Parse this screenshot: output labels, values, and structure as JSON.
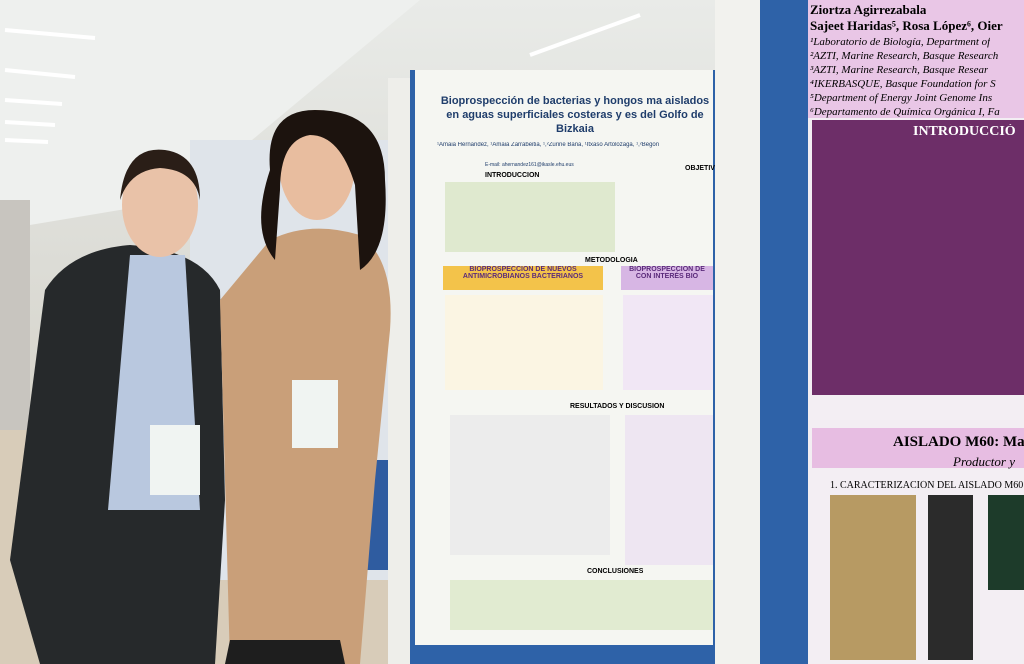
{
  "left_poster": {
    "title": "Bioprospección de bacterias y hongos ma aislados en aguas superficiales costeras y es del Golfo de Bizkaia",
    "authors": "¹Amaia Hernandez, ¹Amaia Zarrabeitia, ¹,²Zuriñe Baña, ¹Itxaso Artolozaga, ¹,²Begoñ",
    "email": "E-mail: ahernandez161@ikasle.ehu.eus",
    "sections": [
      "INTRODUCCIÓN",
      "OBJETIV",
      "METODOLOGÍA",
      "RESULTADOS Y DISCUSIÓN",
      "CONCLUSIONES"
    ],
    "panels": [
      "BIOPROSPECCIÓN DE NUEVOS ANTIMICROBIANOS BACTERIANOS",
      "BIOPROSPECCIÓN DE CON INTERÉS BIO"
    ]
  },
  "right_poster": {
    "authors": [
      "Ziortza Agirrezabala",
      "Sajeet Haridas⁵, Rosa López⁶, Oier"
    ],
    "affiliations": [
      "¹Laboratorio de Biología, Department of",
      "²AZTI, Marine Research, Basque Research",
      "³AZTI, Marine Research, Basque Resear",
      "⁴IKERBASQUE, Basque Foundation for S",
      "⁵Department of Energy Joint Genome Ins",
      "⁶Departamento de Química Orgánica I, Fa"
    ],
    "introduction": "INTRODUCCIÓ",
    "section": "AISLADO M60: Ma",
    "subtitle": "Productor y",
    "subsection": "1. CARACTERIZACIÓN DEL AISLADO M60"
  }
}
